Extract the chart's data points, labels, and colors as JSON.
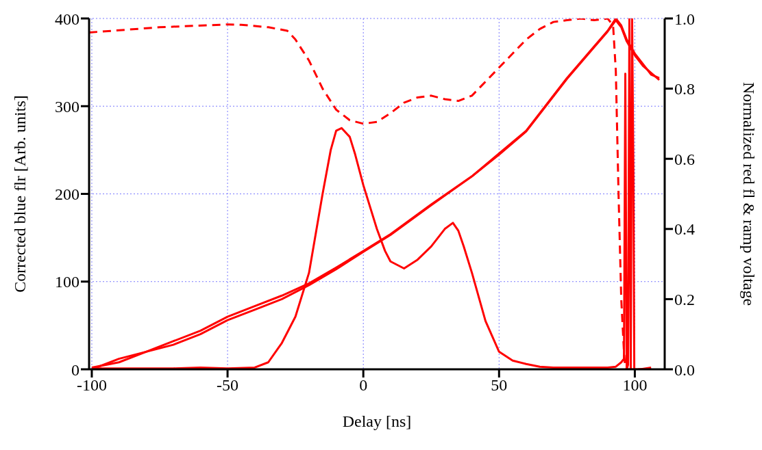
{
  "chart_data": {
    "type": "line",
    "xlabel": "Delay [ns]",
    "ylabel": "Corrected blue flr [Arb. units]",
    "y2label": "Normalized red fl & ramp voltage",
    "xlim": [
      -101,
      111
    ],
    "xticks": [
      -100,
      -50,
      0,
      50,
      100
    ],
    "ylim": [
      0,
      400
    ],
    "yticks": [
      0,
      100,
      200,
      300,
      400
    ],
    "y2lim": [
      0,
      1
    ],
    "y2ticks": [
      {
        "value": 0,
        "label": "0.0"
      },
      {
        "value": 0.2,
        "label": "0.2"
      },
      {
        "value": 0.4,
        "label": "0.4"
      },
      {
        "value": 0.6,
        "label": "0.6"
      },
      {
        "value": 0.8,
        "label": "0.8"
      },
      {
        "value": 1,
        "label": "1.0"
      }
    ],
    "grid": true,
    "marker": "none",
    "line_style": "solid",
    "series": [
      {
        "color": "#ff0000",
        "x": [
          -100,
          -90,
          -80,
          -70,
          -60,
          -50,
          -40,
          -35,
          -30,
          -25,
          -20,
          -15,
          -12,
          -10,
          -8,
          -5,
          -3,
          0,
          5,
          8,
          10,
          15,
          20,
          25,
          30,
          33,
          35,
          37,
          40,
          45,
          50,
          55,
          60,
          65,
          70,
          80,
          90,
          93,
          95,
          96,
          96.5,
          97,
          97.5,
          98,
          98.5,
          99,
          99.5,
          99.8,
          100,
          102,
          106
        ],
        "values": [
          1,
          1,
          1,
          1,
          2,
          1,
          2,
          8,
          30,
          60,
          110,
          200,
          250,
          272,
          275,
          265,
          245,
          210,
          160,
          135,
          123,
          115,
          125,
          140,
          160,
          167,
          158,
          140,
          110,
          55,
          20,
          10,
          6,
          3,
          2,
          2,
          2,
          3,
          8,
          12,
          337,
          0,
          5,
          400,
          0,
          400,
          215,
          0,
          0,
          0,
          2
        ]
      },
      {
        "color": "#ff0000",
        "axis": "y2",
        "line_style": "dashed",
        "x": [
          -101,
          -75,
          -50,
          -45,
          -35,
          -28,
          -25,
          -20,
          -15,
          -10,
          -5,
          0,
          5,
          10,
          15,
          20,
          25,
          30,
          35,
          40,
          45,
          50,
          55,
          60,
          65,
          70,
          75,
          80,
          85,
          90,
          92,
          93,
          94,
          95,
          96,
          96.5,
          100,
          106
        ],
        "values": [
          0.96,
          0.975,
          0.983,
          0.982,
          0.975,
          0.965,
          0.94,
          0.88,
          0.8,
          0.74,
          0.71,
          0.7,
          0.705,
          0.73,
          0.76,
          0.775,
          0.78,
          0.77,
          0.765,
          0.78,
          0.82,
          0.86,
          0.9,
          0.94,
          0.97,
          0.99,
          0.995,
          1.0,
          0.995,
          1.0,
          0.98,
          0.85,
          0.5,
          0.2,
          0.05,
          0,
          0,
          0
        ]
      },
      {
        "color": "#ff0000",
        "axis": "y2",
        "x": [
          -100,
          -90,
          -80,
          -70,
          -60,
          -50,
          -40,
          -30,
          -20,
          -10,
          0,
          10,
          25,
          40,
          50,
          60,
          75,
          85,
          90,
          93,
          95,
          97,
          100,
          103,
          106,
          109
        ],
        "values": [
          0,
          0.03,
          0.05,
          0.08,
          0.11,
          0.15,
          0.18,
          0.21,
          0.245,
          0.29,
          0.337,
          0.385,
          0.47,
          0.55,
          0.615,
          0.68,
          0.83,
          0.92,
          0.965,
          1.0,
          0.98,
          0.94,
          0.9,
          0.87,
          0.84,
          0.83
        ]
      },
      {
        "color": "#ff0000",
        "axis": "y2",
        "x": [
          -100,
          -90,
          -80,
          -70,
          -60,
          -50,
          -40,
          -30,
          -20,
          -10,
          0,
          10,
          25,
          40,
          50,
          60,
          75,
          85,
          90,
          93,
          95,
          97,
          100,
          103,
          106,
          109
        ],
        "values": [
          0.005,
          0.02,
          0.05,
          0.07,
          0.1,
          0.14,
          0.17,
          0.2,
          0.24,
          0.285,
          0.335,
          0.383,
          0.468,
          0.55,
          0.612,
          0.678,
          0.828,
          0.918,
          0.963,
          0.995,
          0.975,
          0.935,
          0.895,
          0.865,
          0.845,
          0.825
        ]
      }
    ]
  }
}
